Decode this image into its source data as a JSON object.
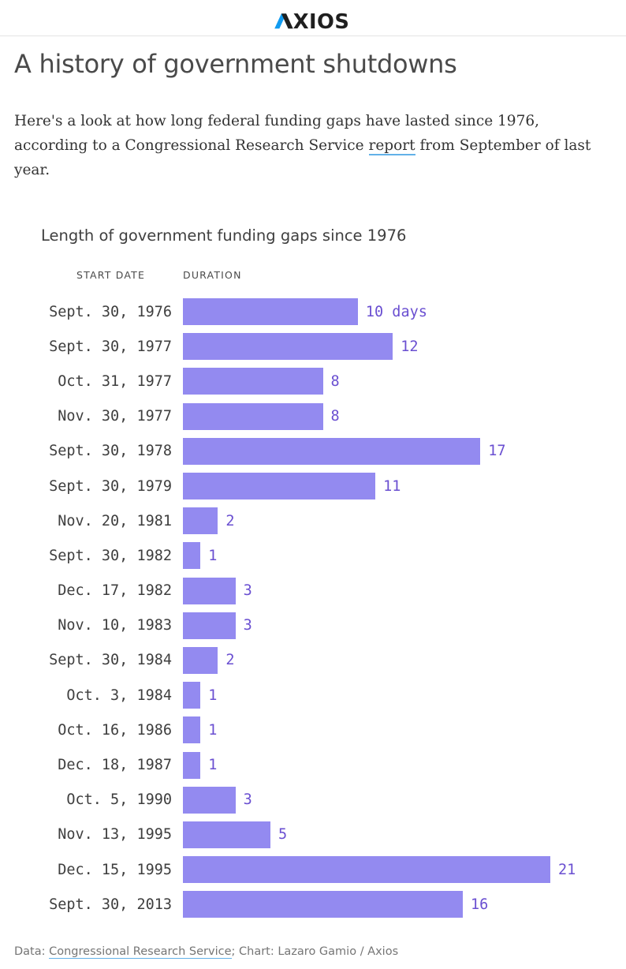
{
  "header": {
    "logo_text": "AXIOS",
    "logo_dark_color": "#1f1f1f",
    "logo_blue_color": "#119bf0"
  },
  "article": {
    "title": "A history of government shutdowns",
    "intro_before_link": "Here's a look at how long federal funding gaps have lasted since 1976, according to a Congressional Research Service ",
    "intro_link": "report",
    "intro_after_link": " from September of last year."
  },
  "chart_data": {
    "type": "bar",
    "orientation": "horizontal",
    "title": "Length of government funding gaps since 1976",
    "column_headers": {
      "start_date": "START DATE",
      "duration": "DURATION"
    },
    "categories": [
      "Sept. 30, 1976",
      "Sept. 30, 1977",
      "Oct. 31, 1977",
      "Nov. 30, 1977",
      "Sept. 30, 1978",
      "Sept. 30, 1979",
      "Nov. 20, 1981",
      "Sept. 30, 1982",
      "Dec. 17, 1982",
      "Nov. 10, 1983",
      "Sept. 30, 1984",
      "Oct. 3, 1984",
      "Oct. 16, 1986",
      "Dec. 18, 1987",
      "Oct. 5, 1990",
      "Nov. 13, 1995",
      "Dec. 15, 1995",
      "Sept. 30, 2013"
    ],
    "values": [
      10,
      12,
      8,
      8,
      17,
      11,
      2,
      1,
      3,
      3,
      2,
      1,
      1,
      1,
      3,
      5,
      21,
      16
    ],
    "value_labels": [
      "10 days",
      "12",
      "8",
      "8",
      "17",
      "11",
      "2",
      "1",
      "3",
      "3",
      "2",
      "1",
      "1",
      "1",
      "3",
      "5",
      "21",
      "16"
    ],
    "unit": "days",
    "xlim": [
      0,
      21
    ],
    "bar_color": "#938af0",
    "value_label_color": "#6a4fd1",
    "grid": false,
    "legend": "none"
  },
  "footer": {
    "prefix": "Data: ",
    "source_link": "Congressional Research Service",
    "suffix": "; Chart: Lazaro Gamio / Axios"
  }
}
